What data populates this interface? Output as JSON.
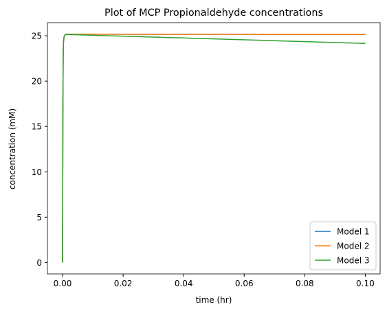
{
  "chart_data": {
    "type": "line",
    "title": "Plot of MCP Propionaldehyde concentrations",
    "xlabel": "time (hr)",
    "ylabel": "concentration (mM)",
    "xlim": [
      -0.005,
      0.1049
    ],
    "ylim": [
      -1.26,
      26.45
    ],
    "x_ticks": [
      0.0,
      0.02,
      0.04,
      0.06,
      0.08,
      0.1
    ],
    "x_tick_labels": [
      "0.00",
      "0.02",
      "0.04",
      "0.06",
      "0.08",
      "0.10"
    ],
    "y_ticks": [
      0,
      5,
      10,
      15,
      20,
      25
    ],
    "y_tick_labels": [
      "0",
      "5",
      "10",
      "15",
      "20",
      "25"
    ],
    "grid": false,
    "legend_position": "lower-right",
    "series": [
      {
        "name": "Model 1",
        "color": "#1f77b4",
        "x": [
          0.0,
          5e-05,
          0.0001,
          0.0002,
          0.0003,
          0.0005,
          0.0007,
          0.001,
          0.002,
          0.01,
          0.05,
          0.1
        ],
        "y": [
          0.0,
          8.0,
          16.0,
          22.5,
          24.3,
          24.9,
          25.05,
          25.15,
          25.17,
          25.17,
          25.16,
          25.15
        ]
      },
      {
        "name": "Model 2",
        "color": "#ff7f0e",
        "x": [
          0.0,
          5e-05,
          0.0001,
          0.0002,
          0.0003,
          0.0005,
          0.0007,
          0.001,
          0.002,
          0.01,
          0.05,
          0.1
        ],
        "y": [
          0.0,
          8.0,
          16.0,
          22.5,
          24.3,
          24.9,
          25.05,
          25.15,
          25.17,
          25.17,
          25.16,
          25.15
        ]
      },
      {
        "name": "Model 3",
        "color": "#2ca02c",
        "x": [
          0.0,
          5e-05,
          0.0001,
          0.0002,
          0.0003,
          0.0005,
          0.0007,
          0.001,
          0.002,
          0.01,
          0.05,
          0.1
        ],
        "y": [
          0.0,
          8.0,
          16.0,
          22.5,
          24.3,
          24.9,
          25.05,
          25.15,
          25.14,
          25.06,
          24.66,
          24.16
        ]
      }
    ]
  }
}
